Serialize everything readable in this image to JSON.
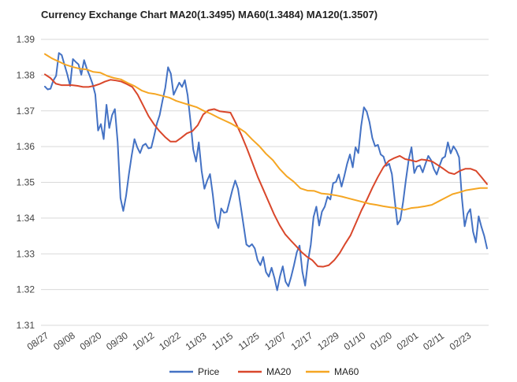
{
  "chart_data": {
    "type": "line",
    "title": "Currency Exchange Chart MA20(1.3495) MA60(1.3484) MA120(1.3507)",
    "xlabel": "",
    "ylabel": "",
    "ylim": [
      1.31,
      1.39
    ],
    "yticks": [
      "1.31",
      "1.32",
      "1.33",
      "1.34",
      "1.35",
      "1.36",
      "1.37",
      "1.38",
      "1.39"
    ],
    "xticks": [
      "08/27",
      "09/08",
      "09/20",
      "09/30",
      "10/12",
      "10/22",
      "11/03",
      "11/15",
      "11/25",
      "12/07",
      "12/17",
      "12/29",
      "01/10",
      "01/20",
      "02/01",
      "02/11",
      "02/23"
    ],
    "grid": true,
    "legend_position": "bottom",
    "series": [
      {
        "name": "Price",
        "color": "#4472C4",
        "values": [
          1.3768,
          1.376,
          1.3762,
          1.3785,
          1.3798,
          1.3862,
          1.3856,
          1.3829,
          1.3802,
          1.377,
          1.3845,
          1.3837,
          1.383,
          1.3801,
          1.3842,
          1.3817,
          1.3798,
          1.3776,
          1.3746,
          1.3645,
          1.3663,
          1.3621,
          1.3717,
          1.3652,
          1.3688,
          1.3705,
          1.3612,
          1.3456,
          1.342,
          1.3462,
          1.3522,
          1.3575,
          1.3621,
          1.3598,
          1.3582,
          1.3603,
          1.3608,
          1.3595,
          1.3597,
          1.3629,
          1.3664,
          1.3688,
          1.3728,
          1.3764,
          1.3822,
          1.3804,
          1.3745,
          1.3762,
          1.3779,
          1.3767,
          1.3786,
          1.3744,
          1.3672,
          1.3592,
          1.3558,
          1.3612,
          1.3532,
          1.3482,
          1.3505,
          1.3523,
          1.3465,
          1.3395,
          1.3372,
          1.3427,
          1.3415,
          1.3417,
          1.3448,
          1.3479,
          1.3505,
          1.3482,
          1.3432,
          1.3379,
          1.3326,
          1.332,
          1.3327,
          1.3315,
          1.3282,
          1.3268,
          1.3291,
          1.3249,
          1.3236,
          1.3261,
          1.3233,
          1.3198,
          1.3237,
          1.3265,
          1.3222,
          1.3209,
          1.3236,
          1.3268,
          1.3304,
          1.3323,
          1.325,
          1.3211,
          1.3279,
          1.3325,
          1.3403,
          1.3432,
          1.3379,
          1.3418,
          1.3432,
          1.346,
          1.3452,
          1.3498,
          1.3501,
          1.3522,
          1.3488,
          1.3518,
          1.3552,
          1.3578,
          1.3542,
          1.3598,
          1.3582,
          1.3657,
          1.371,
          1.3698,
          1.3668,
          1.3624,
          1.3601,
          1.3605,
          1.3578,
          1.3572,
          1.3546,
          1.3552,
          1.3523,
          1.3451,
          1.3382,
          1.3395,
          1.3445,
          1.3507,
          1.3563,
          1.3598,
          1.3526,
          1.3544,
          1.3547,
          1.3528,
          1.3552,
          1.3574,
          1.3562,
          1.3537,
          1.3522,
          1.3546,
          1.3567,
          1.3572,
          1.3612,
          1.3581,
          1.3601,
          1.3589,
          1.357,
          1.3458,
          1.3377,
          1.3412,
          1.3425,
          1.3362,
          1.3332,
          1.3405,
          1.3375,
          1.335,
          1.3315
        ]
      },
      {
        "name": "MA20",
        "color": "#D9472B",
        "values": [
          1.3802,
          1.3792,
          1.3776,
          1.3772,
          1.3772,
          1.3772,
          1.377,
          1.3767,
          1.3767,
          1.377,
          1.3775,
          1.3782,
          1.3787,
          1.3785,
          1.3782,
          1.3775,
          1.3767,
          1.3745,
          1.3715,
          1.3685,
          1.3662,
          1.3643,
          1.3627,
          1.3614,
          1.3614,
          1.3625,
          1.3637,
          1.3643,
          1.366,
          1.369,
          1.3702,
          1.3705,
          1.3699,
          1.3697,
          1.3695,
          1.3665,
          1.3632,
          1.3595,
          1.3555,
          1.3515,
          1.348,
          1.3445,
          1.341,
          1.338,
          1.3355,
          1.3338,
          1.3322,
          1.3305,
          1.3292,
          1.3282,
          1.3265,
          1.3264,
          1.3268,
          1.3282,
          1.3302,
          1.3328,
          1.3352,
          1.3387,
          1.3422,
          1.3452,
          1.3485,
          1.3515,
          1.3542,
          1.356,
          1.3568,
          1.3574,
          1.3565,
          1.3562,
          1.3558,
          1.3564,
          1.3562,
          1.3558,
          1.3548,
          1.3538,
          1.3527,
          1.3523,
          1.3532,
          1.3538,
          1.3538,
          1.3532,
          1.3514,
          1.3495
        ]
      },
      {
        "name": "MA60",
        "color": "#F5A623",
        "values": [
          1.3859,
          1.3847,
          1.3838,
          1.3829,
          1.3823,
          1.3818,
          1.3816,
          1.3809,
          1.3807,
          1.3798,
          1.3792,
          1.3788,
          1.3778,
          1.3769,
          1.3757,
          1.375,
          1.3747,
          1.3742,
          1.3737,
          1.3728,
          1.3722,
          1.3716,
          1.371,
          1.37,
          1.3692,
          1.3682,
          1.3673,
          1.3664,
          1.3653,
          1.364,
          1.362,
          1.3602,
          1.358,
          1.3562,
          1.3537,
          1.3517,
          1.3502,
          1.3483,
          1.3477,
          1.3476,
          1.3469,
          1.3467,
          1.3464,
          1.346,
          1.3455,
          1.345,
          1.3445,
          1.344,
          1.3437,
          1.3433,
          1.343,
          1.3428,
          1.3423,
          1.3428,
          1.343,
          1.3433,
          1.3437,
          1.3447,
          1.3457,
          1.3467,
          1.3472,
          1.3478,
          1.3481,
          1.3484,
          1.3484
        ]
      }
    ]
  }
}
